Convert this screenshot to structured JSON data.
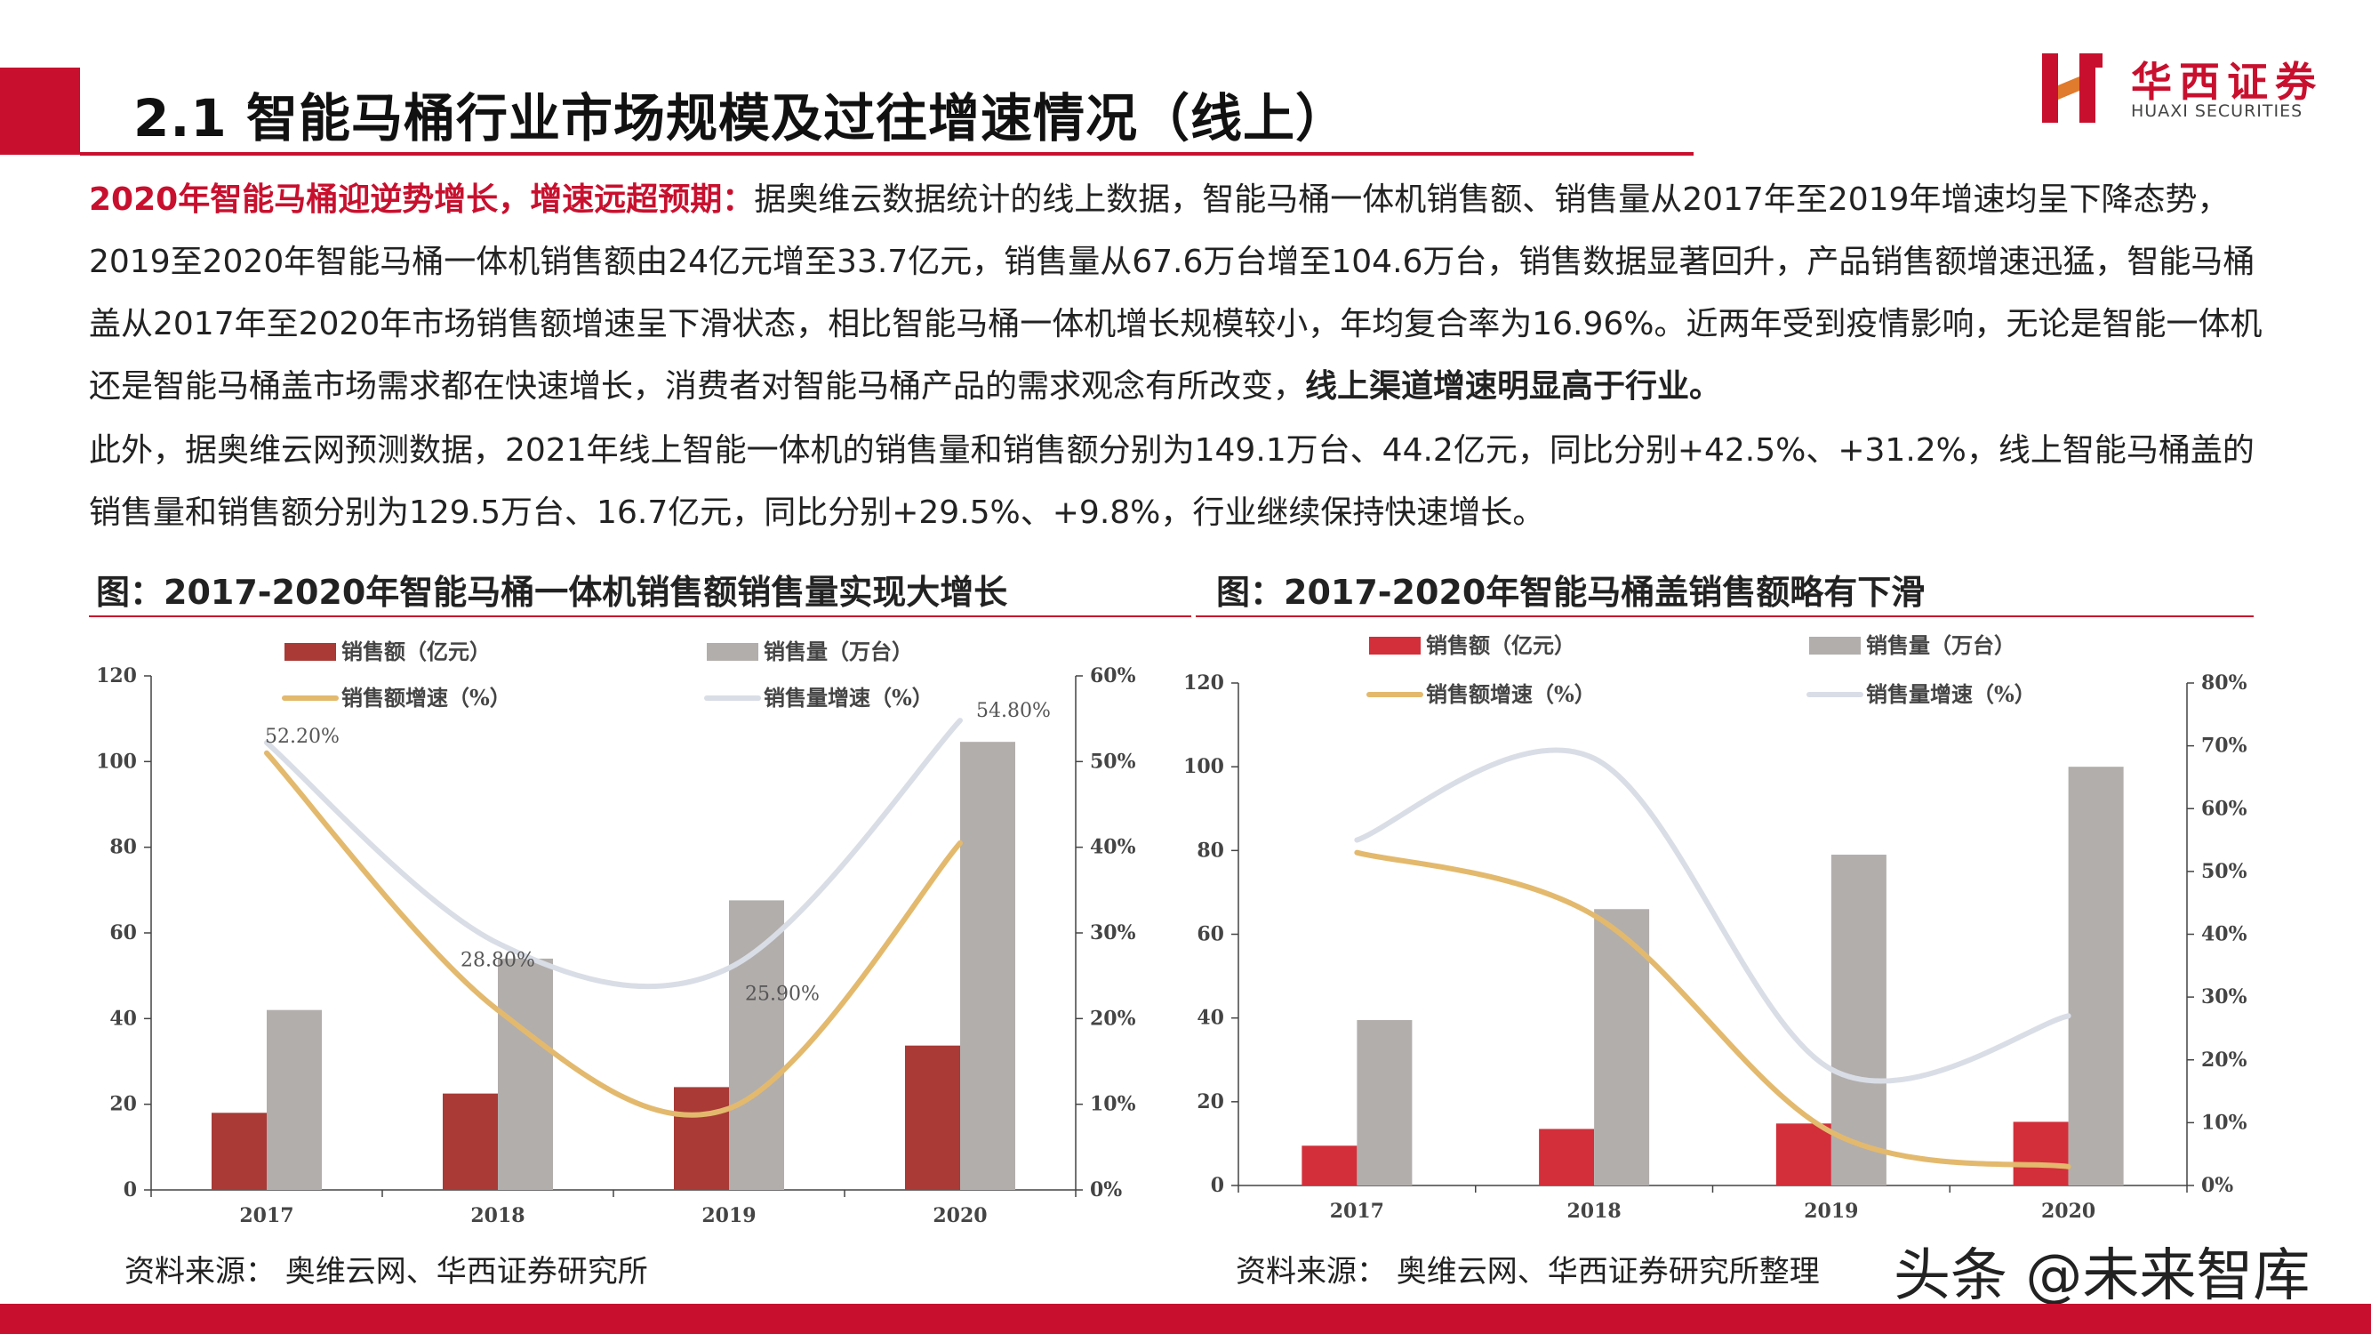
{
  "header": {
    "title": "2.1 智能马桶行业市场规模及过往增速情况（线上）",
    "logo_cn": "华西证券",
    "logo_en": "HUAXI SECURITIES",
    "accent": "#c8102e"
  },
  "body": {
    "lead": "2020年智能马桶迎逆势增长，增速远超预期：",
    "p1_text": "据奥维云数据统计的线上数据，智能马桶一体机销售额、销售量从2017年至2019年增速均呈下降态势，2019至2020年智能马桶一体机销售额由24亿元增至33.7亿元，销售量从67.6万台增至104.6万台，销售数据显著回升，产品销售额增速迅猛，智能马桶盖从2017年至2020年市场销售额增速呈下滑状态，相比智能马桶一体机增长规模较小，年均复合率为16.96%。近两年受到疫情影响，无论是智能一体机还是智能马桶盖市场需求都在快速增长，消费者对智能马桶产品的需求观念有所改变，",
    "p1_bold": "线上渠道增速明显高于行业。",
    "p2": "此外，据奥维云网预测数据，2021年线上智能一体机的销售量和销售额分别为149.1万台、44.2亿元，同比分别+42.5%、+31.2%，线上智能马桶盖的销售量和销售额分别为129.5万台、16.7亿元，同比分别+29.5%、+9.8%，行业继续保持快速增长。"
  },
  "charts": {
    "left_title": "图：2017-2020年智能马桶一体机销售额销售量实现大增长",
    "right_title": "图：2017-2020年智能马桶盖销售额略有下滑",
    "left_source": "资料来源：  奥维云网、华西证券研究所",
    "right_source": "资料来源：  奥维云网、华西证券研究所整理"
  },
  "watermark": "头条 @未来智库",
  "chart_data": [
    {
      "type": "bar",
      "categories": [
        "2017",
        "2018",
        "2019",
        "2020"
      ],
      "series": [
        {
          "name": "销售额（亿元）",
          "kind": "bar",
          "axis": "left",
          "color": "#a93a36",
          "values": [
            18,
            22.5,
            24,
            33.7
          ]
        },
        {
          "name": "销售量（万台）",
          "kind": "bar",
          "axis": "left",
          "color": "#b2aeac",
          "values": [
            42,
            54,
            67.6,
            104.6
          ]
        },
        {
          "name": "销售额增速（%）",
          "kind": "line",
          "axis": "right",
          "color": "#e3b96d",
          "values": [
            51,
            21,
            9.5,
            40.5
          ]
        },
        {
          "name": "销售量增速（%）",
          "kind": "line",
          "axis": "right",
          "color": "#d9dde6",
          "values": [
            52.2,
            28.8,
            25.9,
            54.8
          ]
        }
      ],
      "data_labels": [
        "52.20%",
        "28.80%",
        "25.90%",
        "54.80%"
      ],
      "ylim": [
        0,
        120
      ],
      "yticks": [
        "0",
        "20",
        "40",
        "60",
        "80",
        "100",
        "120"
      ],
      "y2lim": [
        0,
        60
      ],
      "y2ticks": [
        "0%",
        "10%",
        "20%",
        "30%",
        "40%",
        "50%",
        "60%"
      ],
      "legend": "top"
    },
    {
      "type": "bar",
      "categories": [
        "2017",
        "2018",
        "2019",
        "2020"
      ],
      "series": [
        {
          "name": "销售额（亿元）",
          "kind": "bar",
          "axis": "left",
          "color": "#d22f3a",
          "values": [
            9.5,
            13.5,
            14.8,
            15.2
          ]
        },
        {
          "name": "销售量（万台）",
          "kind": "bar",
          "axis": "left",
          "color": "#b2aeac",
          "values": [
            39.5,
            66,
            79,
            100
          ]
        },
        {
          "name": "销售额增速（%）",
          "kind": "line",
          "axis": "right",
          "color": "#e3b96d",
          "values": [
            53,
            43,
            8.5,
            3
          ]
        },
        {
          "name": "销售量增速（%）",
          "kind": "line",
          "axis": "right",
          "color": "#d9dde6",
          "values": [
            55,
            68,
            18.5,
            27
          ]
        }
      ],
      "ylim": [
        0,
        120
      ],
      "yticks": [
        "0",
        "20",
        "40",
        "60",
        "80",
        "100",
        "120"
      ],
      "y2lim": [
        0,
        80
      ],
      "y2ticks": [
        "0%",
        "10%",
        "20%",
        "30%",
        "40%",
        "50%",
        "60%",
        "70%",
        "80%"
      ],
      "legend": "top"
    }
  ]
}
